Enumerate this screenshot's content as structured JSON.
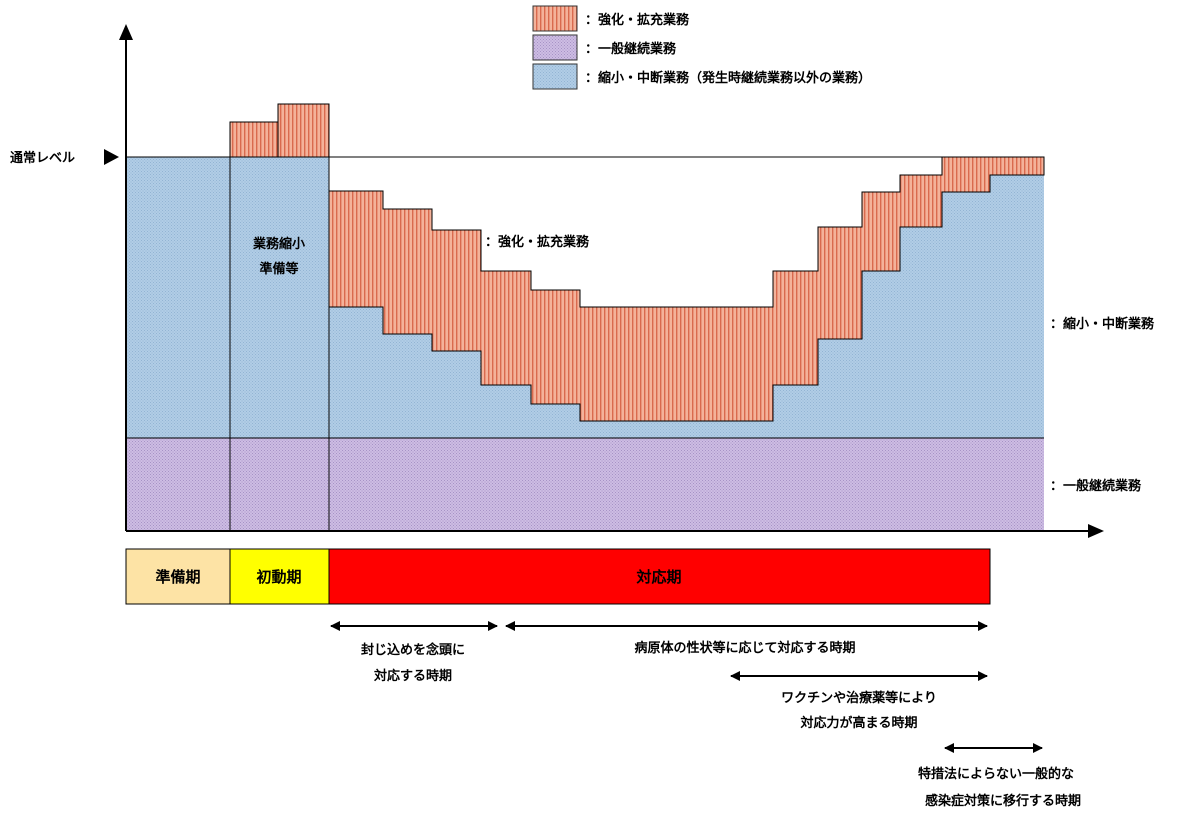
{
  "legend": {
    "items": [
      {
        "key": "enhanced",
        "label": "：強化・拡充業務",
        "color": "#f2a58b"
      },
      {
        "key": "general",
        "label": "：一般継続業務",
        "color": "#c5b3dd"
      },
      {
        "key": "reduced",
        "label": "：縮小・中断業務（発生時継続業務以外の業務）",
        "color": "#a9c8e3"
      }
    ]
  },
  "y_axis": {
    "normal_level_label": "通常レベル"
  },
  "regions": {
    "prep_label_line1": "業務縮小",
    "prep_label_line2": "準備等",
    "enhanced_label": "：強化・拡充業務",
    "reduced_label": "：縮小・中断業務",
    "general_label": "：一般継続業務"
  },
  "phases": [
    {
      "key": "prep",
      "label": "準備期",
      "color": "#fde3a5"
    },
    {
      "key": "initial",
      "label": "初動期",
      "color": "#ffff00"
    },
    {
      "key": "response",
      "label": "対応期",
      "color": "#ff0000"
    }
  ],
  "periods": [
    {
      "key": "containment",
      "line1": "封じ込めを念頭に",
      "line2": "対応する時期"
    },
    {
      "key": "pathogen",
      "line1": "病原体の性状等に応じて対応する時期",
      "line2": ""
    },
    {
      "key": "vaccine",
      "line1": "ワクチンや治療薬等により",
      "line2": "対応力が高まる時期"
    },
    {
      "key": "general_measures",
      "line1": "特措法によらない一般的な",
      "line2": "感染症対策に移行する時期"
    }
  ]
}
